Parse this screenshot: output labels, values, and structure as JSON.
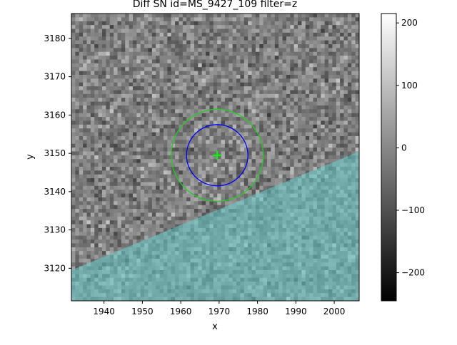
{
  "chart_data": {
    "type": "heatmap",
    "title": "Diff SN id=MS_9427_109 filter=z",
    "xlabel": "x",
    "ylabel": "y",
    "xlim": [
      1931.5,
      2006.5
    ],
    "ylim": [
      3111.5,
      3186.5
    ],
    "xticks": [
      1940,
      1950,
      1960,
      1970,
      1980,
      1990,
      2000
    ],
    "yticks": [
      3120,
      3130,
      3140,
      3150,
      3160,
      3170,
      3180
    ],
    "colormap": "gray",
    "colorbar": {
      "range": [
        -245,
        215
      ],
      "ticks": [
        200,
        100,
        0,
        -100,
        -200
      ],
      "tick_labels": [
        "200",
        "100",
        "0",
        "−100",
        "−200"
      ]
    },
    "overlays": {
      "mask_region": {
        "color": "#66cccc",
        "boundary": [
          [
            1931.5,
            3119.5
          ],
          [
            2006.5,
            3150.5
          ]
        ],
        "side": "below"
      },
      "marker": {
        "type": "cross",
        "x": 1969.5,
        "y": 3149.5,
        "color": "#00ff00"
      },
      "circles": [
        {
          "cx": 1969.5,
          "cy": 3149.5,
          "r": 8,
          "color": "#0000ff"
        },
        {
          "cx": 1969.5,
          "cy": 3149.5,
          "r": 12,
          "color": "#22cc22"
        }
      ]
    },
    "grid": false,
    "legend": "none"
  }
}
